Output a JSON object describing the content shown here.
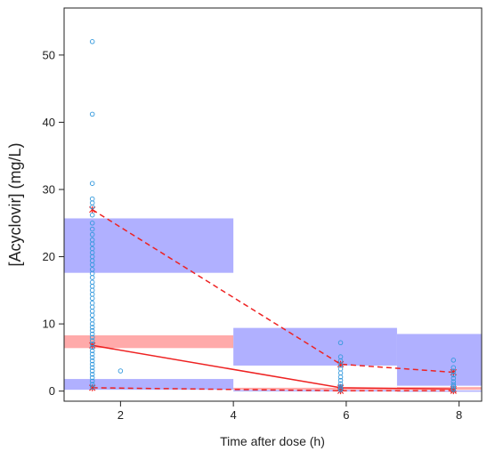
{
  "chart_data": {
    "type": "scatter",
    "xlabel": "Time after dose (h)",
    "ylabel": "[Acyclovir] (mg/L)",
    "xlim": [
      1.0,
      8.4
    ],
    "ylim": [
      -1.5,
      57
    ],
    "x_ticks": [
      2,
      4,
      6,
      8
    ],
    "y_ticks": [
      0,
      10,
      20,
      30,
      40,
      50
    ],
    "grid": false,
    "legend": "none",
    "observations": {
      "color": "#3399dd",
      "points": [
        [
          1.5,
          52.0
        ],
        [
          1.5,
          41.2
        ],
        [
          1.5,
          30.9
        ],
        [
          1.5,
          28.6
        ],
        [
          1.5,
          28.0
        ],
        [
          1.5,
          27.4
        ],
        [
          1.5,
          26.2
        ],
        [
          1.5,
          25.0
        ],
        [
          1.5,
          24.1
        ],
        [
          1.5,
          23.3
        ],
        [
          1.5,
          22.5
        ],
        [
          1.5,
          21.9
        ],
        [
          1.5,
          21.2
        ],
        [
          1.5,
          20.6
        ],
        [
          1.5,
          20.0
        ],
        [
          1.5,
          19.4
        ],
        [
          1.5,
          18.8
        ],
        [
          1.5,
          18.1
        ],
        [
          1.5,
          17.5
        ],
        [
          1.5,
          16.9
        ],
        [
          1.5,
          16.2
        ],
        [
          1.5,
          15.6
        ],
        [
          1.5,
          15.0
        ],
        [
          1.5,
          14.4
        ],
        [
          1.5,
          13.8
        ],
        [
          1.5,
          13.1
        ],
        [
          1.5,
          12.5
        ],
        [
          1.5,
          11.9
        ],
        [
          1.5,
          11.3
        ],
        [
          1.5,
          10.6
        ],
        [
          1.5,
          10.0
        ],
        [
          1.5,
          9.5
        ],
        [
          1.5,
          9.0
        ],
        [
          1.5,
          8.5
        ],
        [
          1.5,
          8.0
        ],
        [
          1.5,
          7.5
        ],
        [
          1.5,
          7.0
        ],
        [
          1.5,
          6.5
        ],
        [
          1.5,
          6.0
        ],
        [
          1.5,
          5.5
        ],
        [
          1.5,
          5.0
        ],
        [
          1.5,
          4.5
        ],
        [
          1.5,
          4.0
        ],
        [
          1.5,
          3.5
        ],
        [
          1.5,
          3.0
        ],
        [
          1.5,
          2.5
        ],
        [
          1.5,
          2.0
        ],
        [
          1.5,
          1.5
        ],
        [
          1.5,
          1.0
        ],
        [
          1.5,
          0.6
        ],
        [
          2.0,
          3.0
        ],
        [
          5.9,
          7.2
        ],
        [
          5.9,
          5.1
        ],
        [
          5.9,
          4.5
        ],
        [
          5.9,
          3.9
        ],
        [
          5.9,
          3.3
        ],
        [
          5.9,
          2.7
        ],
        [
          5.9,
          2.1
        ],
        [
          5.9,
          1.6
        ],
        [
          5.9,
          1.1
        ],
        [
          5.9,
          0.7
        ],
        [
          5.9,
          0.4
        ],
        [
          5.9,
          0.2
        ],
        [
          7.9,
          4.6
        ],
        [
          7.9,
          3.5
        ],
        [
          7.9,
          2.9
        ],
        [
          7.9,
          2.4
        ],
        [
          7.9,
          1.9
        ],
        [
          7.9,
          1.4
        ],
        [
          7.9,
          1.0
        ],
        [
          7.9,
          0.7
        ],
        [
          7.9,
          0.4
        ],
        [
          7.9,
          0.2
        ]
      ]
    },
    "observed_percentiles": {
      "x": [
        1.5,
        5.9,
        7.9
      ],
      "p95": [
        27.0,
        4.0,
        2.8
      ],
      "median": [
        6.8,
        0.5,
        0.3
      ],
      "p5": [
        0.5,
        0.05,
        0.05
      ],
      "color": "#ee2222"
    },
    "prediction_intervals": {
      "color_outer": "#b0b0ff",
      "color_median": "#ffaaaa",
      "bins": [
        {
          "x_range": [
            1.0,
            4.0
          ],
          "upper_ci": [
            17.6,
            25.7
          ],
          "median_ci": [
            6.4,
            8.3
          ],
          "lower_ci": [
            0.2,
            1.8
          ]
        },
        {
          "x_range": [
            4.0,
            6.9
          ],
          "upper_ci": [
            3.8,
            9.4
          ],
          "median_ci": [
            0.2,
            0.5
          ],
          "lower_ci": [
            0.0,
            0.15
          ]
        },
        {
          "x_range": [
            6.9,
            8.4
          ],
          "upper_ci": [
            0.8,
            8.5
          ],
          "median_ci": [
            0.2,
            0.6
          ],
          "lower_ci": [
            0.0,
            0.1
          ]
        }
      ]
    }
  }
}
